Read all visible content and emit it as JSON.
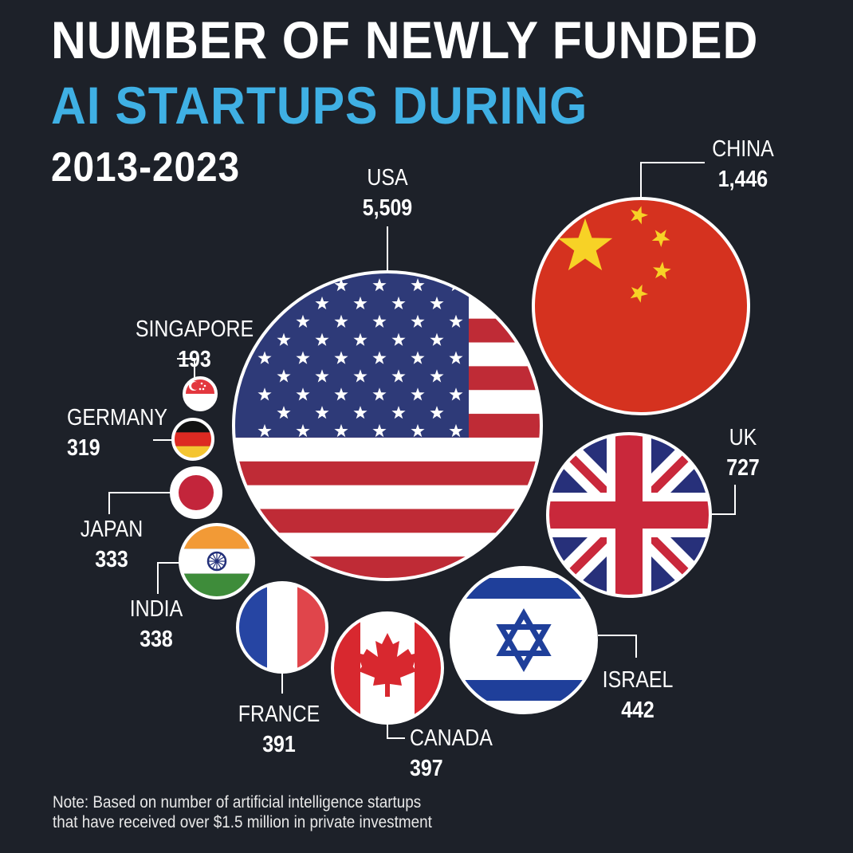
{
  "header": {
    "title_line1": "NUMBER OF NEWLY FUNDED",
    "title_line2": "AI STARTUPS DURING",
    "title_line3": "2013-2023"
  },
  "footer": {
    "note_line1": "Note: Based on number of artificial intelligence startups",
    "note_line2": "that have received over $1.5 million in private investment"
  },
  "colors": {
    "background": "#1d2129",
    "accent": "#3fb0e4",
    "text": "#ffffff"
  },
  "chart_data": {
    "type": "bubble",
    "categories": [
      "USA",
      "CHINA",
      "UK",
      "ISRAEL",
      "CANADA",
      "FRANCE",
      "INDIA",
      "JAPAN",
      "GERMANY",
      "SINGAPORE"
    ],
    "value_labels": [
      "5,509",
      "1,446",
      "727",
      "442",
      "397",
      "391",
      "338",
      "333",
      "319",
      "193"
    ],
    "values": [
      5509,
      1446,
      727,
      442,
      397,
      391,
      338,
      333,
      319,
      193
    ],
    "flags": [
      "usa-flag",
      "china-flag",
      "uk-flag",
      "israel-flag",
      "canada-flag",
      "france-flag",
      "india-flag",
      "japan-flag",
      "germany-flag",
      "singapore-flag"
    ]
  }
}
